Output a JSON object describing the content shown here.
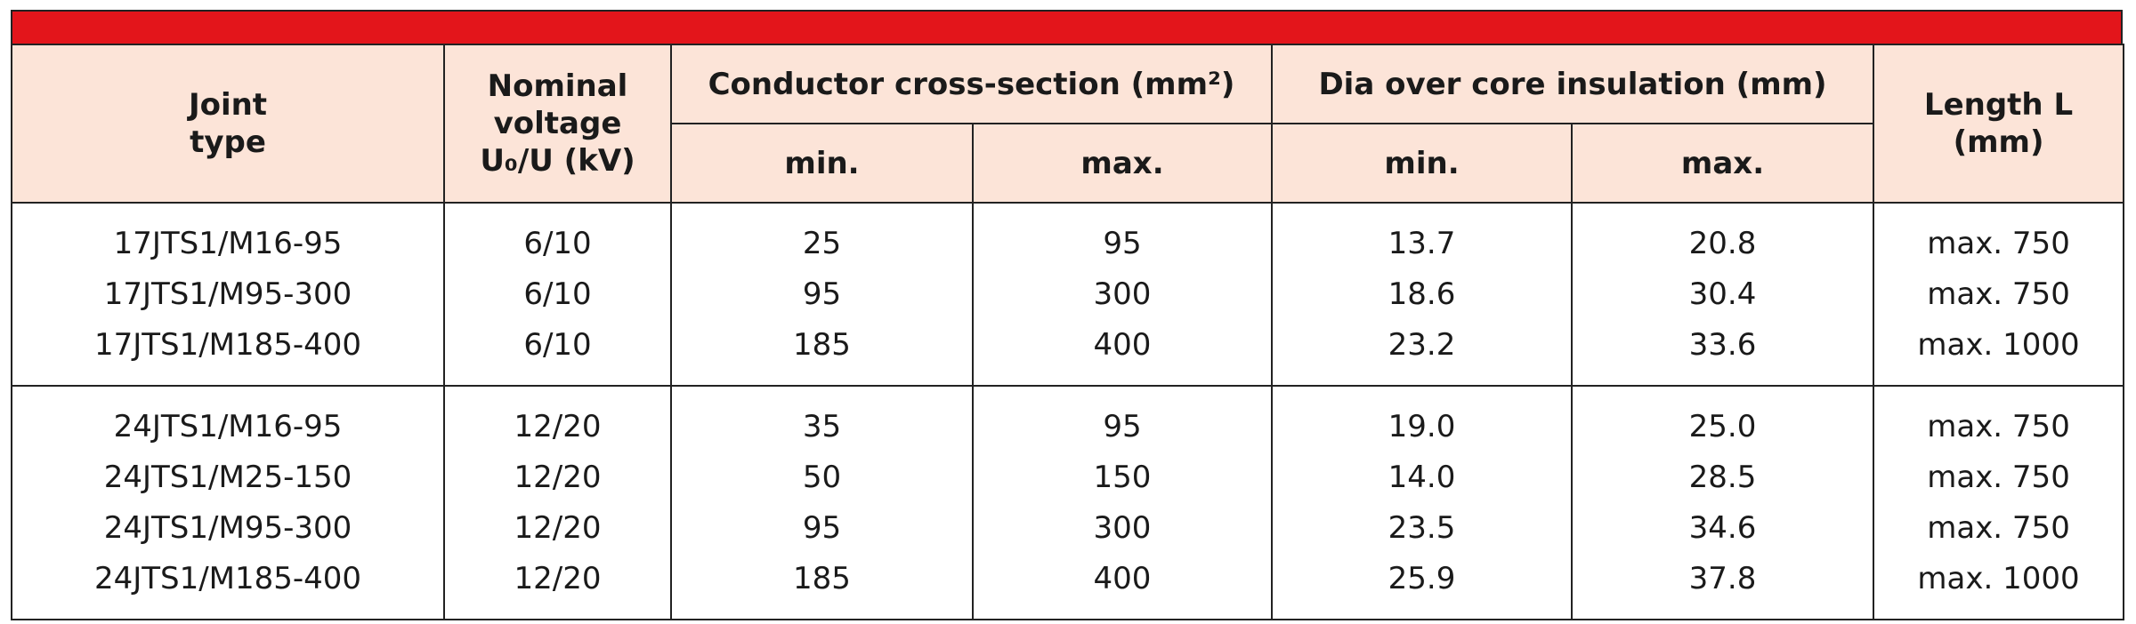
{
  "table": {
    "headers": [
      "Joint type",
      "Nominal voltage U₀/U (kV)",
      "Conductor cross-section (mm²)",
      "Dia over core insulation (mm)",
      "Length L (mm)"
    ],
    "subheaders": [
      "min.",
      "max.",
      "min.",
      "max."
    ],
    "groups": [
      [
        [
          "17JTS1/M16-95",
          "6/10",
          "25",
          "95",
          "13.7",
          "20.8",
          "max. 750"
        ],
        [
          "17JTS1/M95-300",
          "6/10",
          "95",
          "300",
          "18.6",
          "30.4",
          "max. 750"
        ],
        [
          "17JTS1/M185-400",
          "6/10",
          "185",
          "400",
          "23.2",
          "33.6",
          "max. 1000"
        ]
      ],
      [
        [
          "24JTS1/M16-95",
          "12/20",
          "35",
          "95",
          "19.0",
          "25.0",
          "max. 750"
        ],
        [
          "24JTS1/M25-150",
          "12/20",
          "50",
          "150",
          "14.0",
          "28.5",
          "max. 750"
        ],
        [
          "24JTS1/M95-300",
          "12/20",
          "95",
          "300",
          "23.5",
          "34.6",
          "max. 750"
        ],
        [
          "24JTS1/M185-400",
          "12/20",
          "185",
          "400",
          "25.9",
          "37.8",
          "max. 1000"
        ]
      ]
    ]
  }
}
